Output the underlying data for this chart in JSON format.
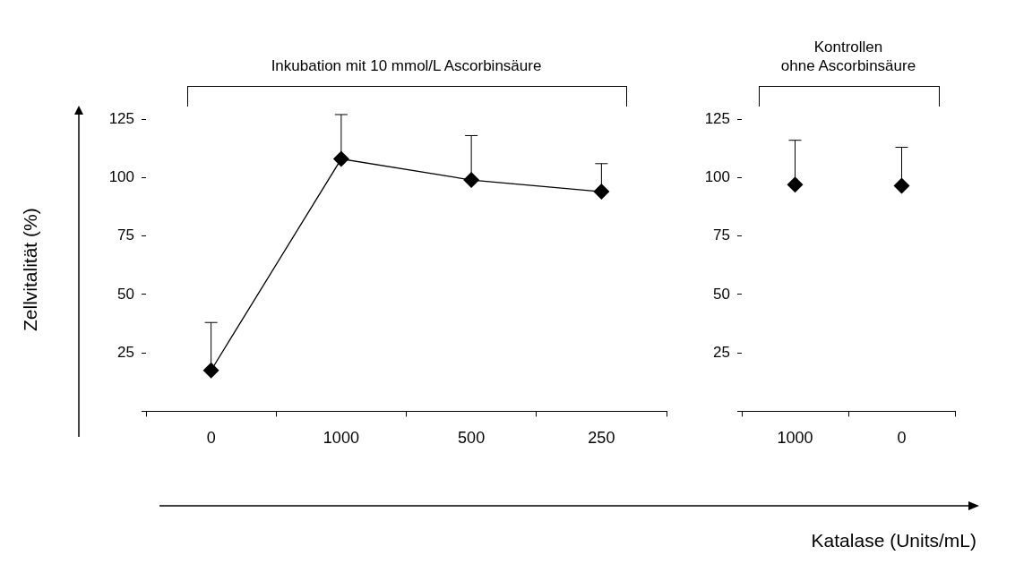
{
  "chart_data": [
    {
      "type": "line",
      "title": "Inkubation mit 10 mmol/L Ascorbinsäure",
      "ylabel": "Zellvitalität  (%)",
      "categories": [
        "0",
        "1000",
        "500",
        "250"
      ],
      "series": [
        {
          "color": "#000000",
          "values": [
            17.5,
            108,
            99,
            94
          ],
          "errors": [
            [
              17.5,
              38
            ],
            [
              108,
              127
            ],
            [
              99,
              118
            ],
            [
              94,
              106
            ]
          ]
        }
      ],
      "ylim": [
        0,
        125
      ],
      "yticks": [
        {
          "value": 0,
          "label": null
        },
        25,
        50,
        75,
        100,
        125
      ],
      "grid": false,
      "legend": false,
      "marker": "diamond",
      "line_style": "solid"
    },
    {
      "type": "scatter",
      "title": "Kontrollen\nohne Ascorbinsäure",
      "xlabel": "Katalase (Units/mL)",
      "categories": [
        "1000",
        "0"
      ],
      "series": [
        {
          "color": "#000000",
          "values": [
            97,
            96.5
          ],
          "errors": [
            [
              97,
              116
            ],
            [
              96.5,
              113
            ]
          ]
        }
      ],
      "ylim": [
        0,
        125
      ],
      "yticks": [
        {
          "value": 0,
          "label": null
        },
        25,
        50,
        75,
        100,
        125
      ],
      "grid": false,
      "legend": false,
      "marker": "diamond"
    }
  ]
}
